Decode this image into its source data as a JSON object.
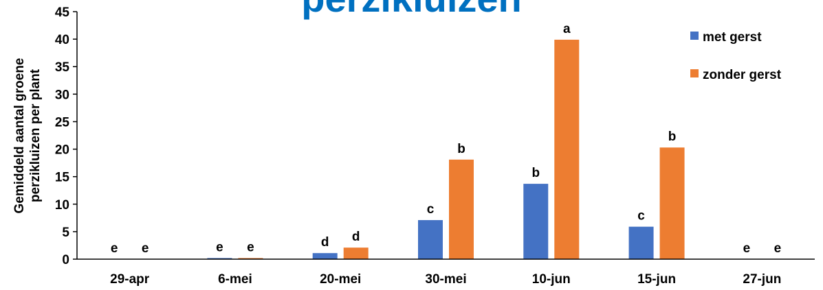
{
  "header": {
    "title_fragment": "perzikluizen",
    "title_color": "#0070C0"
  },
  "chart_data": {
    "type": "bar",
    "title": "",
    "ylabel_lines": [
      "Gemiddeld aantal groene",
      "perzikluizen per plant"
    ],
    "xlabel": "",
    "ylim": [
      0,
      45
    ],
    "yticks": [
      0,
      5,
      10,
      15,
      20,
      25,
      30,
      35,
      40,
      45
    ],
    "grid": false,
    "legend_position": "top-right",
    "categories": [
      "29-apr",
      "6-mei",
      "20-mei",
      "30-mei",
      "10-jun",
      "15-jun",
      "27-jun"
    ],
    "series": [
      {
        "name": "met gerst",
        "color": "#4472C4",
        "values": [
          0,
          0.2,
          1.1,
          7.1,
          13.7,
          5.9,
          0
        ],
        "letters": [
          "e",
          "e",
          "d",
          "c",
          "b",
          "c",
          "e"
        ]
      },
      {
        "name": "zonder gerst",
        "color": "#ED7D31",
        "values": [
          0,
          0.2,
          2.1,
          18.1,
          39.9,
          20.3,
          0
        ],
        "letters": [
          "e",
          "e",
          "d",
          "b",
          "a",
          "b",
          "e"
        ]
      }
    ]
  }
}
